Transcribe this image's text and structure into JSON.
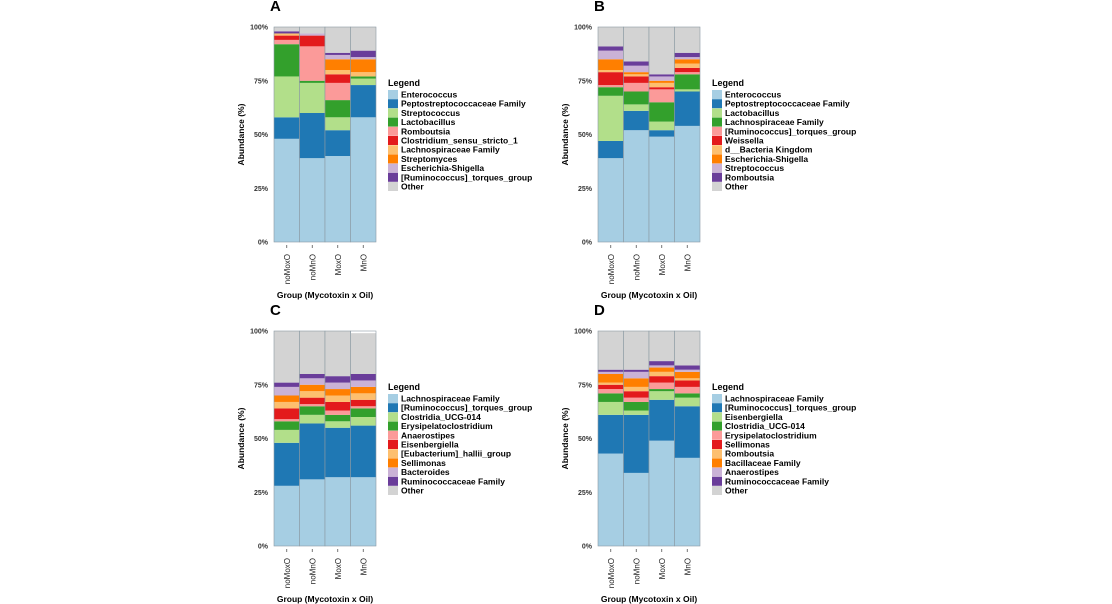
{
  "colors": [
    "#a6cee3",
    "#1f78b4",
    "#b2df8a",
    "#33a02c",
    "#fb9a99",
    "#e31a1c",
    "#fdbf6f",
    "#ff7f00",
    "#cab2d6",
    "#6a3d9a",
    "#d3d3d3"
  ],
  "chart_data": [
    {
      "panel": "A",
      "type": "bar",
      "stacked": true,
      "xlabel": "Group (Mycotoxin x Oil)",
      "ylabel": "Abundance (%)",
      "ylim": [
        0,
        100
      ],
      "yticks": [
        "0%",
        "25%",
        "50%",
        "75%",
        "100%"
      ],
      "categories": [
        "noMoxO",
        "noMnO",
        "MoxO",
        "MnO"
      ],
      "legend_title": "Legend",
      "series": [
        {
          "name": "Enterococcus",
          "values": [
            48,
            39,
            40,
            58
          ]
        },
        {
          "name": "Peptostreptococcaceae Family",
          "values": [
            10,
            21,
            12,
            15
          ]
        },
        {
          "name": "Streptococcus",
          "values": [
            19,
            14,
            6,
            3
          ]
        },
        {
          "name": "Lactobacillus",
          "values": [
            15,
            1,
            8,
            1
          ]
        },
        {
          "name": "Romboutsia",
          "values": [
            2,
            16,
            8,
            0
          ]
        },
        {
          "name": "Clostridium_sensu_stricto_1",
          "values": [
            2,
            5,
            4,
            0
          ]
        },
        {
          "name": "Lachnospiraceae Family",
          "values": [
            1,
            0,
            2,
            2
          ]
        },
        {
          "name": "Streptomyces",
          "values": [
            0,
            0,
            5,
            6
          ]
        },
        {
          "name": "Escherichia-Shigella",
          "values": [
            0,
            1,
            2,
            1
          ]
        },
        {
          "name": "[Ruminococcus]_torques_group",
          "values": [
            1,
            0,
            1,
            3
          ]
        },
        {
          "name": "Other",
          "values": [
            2,
            3,
            12,
            11
          ]
        }
      ]
    },
    {
      "panel": "B",
      "type": "bar",
      "stacked": true,
      "xlabel": "Group (Mycotoxin x Oil)",
      "ylabel": "Abundance (%)",
      "ylim": [
        0,
        100
      ],
      "yticks": [
        "0%",
        "25%",
        "50%",
        "75%",
        "100%"
      ],
      "categories": [
        "noMoxO",
        "noMnO",
        "MoxO",
        "MnO"
      ],
      "legend_title": "Legend",
      "series": [
        {
          "name": "Enterococcus",
          "values": [
            39,
            52,
            49,
            54
          ]
        },
        {
          "name": "Peptostreptococcaceae Family",
          "values": [
            8,
            9,
            3,
            16
          ]
        },
        {
          "name": "Lactobacillus",
          "values": [
            21,
            3,
            4,
            1
          ]
        },
        {
          "name": "Lachnospiraceae Family",
          "values": [
            4,
            6,
            9,
            7
          ]
        },
        {
          "name": "[Ruminococcus]_torques_group",
          "values": [
            1,
            4,
            6,
            1
          ]
        },
        {
          "name": "Weissella",
          "values": [
            6,
            3,
            1,
            2
          ]
        },
        {
          "name": "d__Bacteria Kingdom",
          "values": [
            1,
            1,
            2,
            2
          ]
        },
        {
          "name": "Escherichia-Shigella",
          "values": [
            5,
            1,
            1,
            2
          ]
        },
        {
          "name": "Streptococcus",
          "values": [
            4,
            3,
            2,
            1
          ]
        },
        {
          "name": "Romboutsia",
          "values": [
            2,
            2,
            1,
            2
          ]
        },
        {
          "name": "Other",
          "values": [
            9,
            16,
            22,
            12
          ]
        }
      ]
    },
    {
      "panel": "C",
      "type": "bar",
      "stacked": true,
      "xlabel": "Group (Mycotoxin x Oil)",
      "ylabel": "Abundance (%)",
      "ylim": [
        0,
        100
      ],
      "yticks": [
        "0%",
        "25%",
        "50%",
        "75%",
        "100%"
      ],
      "categories": [
        "noMoxO",
        "noMnO",
        "MoxO",
        "MnO"
      ],
      "legend_title": "Legend",
      "series": [
        {
          "name": "Lachnospiraceae Family",
          "values": [
            28,
            31,
            32,
            32
          ]
        },
        {
          "name": "[Ruminococcus]_torques_group",
          "values": [
            20,
            26,
            23,
            24
          ]
        },
        {
          "name": "Clostridia_UCG-014",
          "values": [
            6,
            4,
            3,
            4
          ]
        },
        {
          "name": "Erysipelatoclostridium",
          "values": [
            4,
            4,
            3,
            4
          ]
        },
        {
          "name": "Anaerostipes",
          "values": [
            1,
            1,
            2,
            1
          ]
        },
        {
          "name": "Eisenbergiella",
          "values": [
            5,
            3,
            4,
            3
          ]
        },
        {
          "name": "[Eubacterium]_hallii_group",
          "values": [
            3,
            3,
            3,
            3
          ]
        },
        {
          "name": "Sellimonas",
          "values": [
            3,
            3,
            3,
            3
          ]
        },
        {
          "name": "Bacteroides",
          "values": [
            4,
            3,
            3,
            3
          ]
        },
        {
          "name": "Ruminococcaceae Family",
          "values": [
            2,
            2,
            3,
            3
          ]
        },
        {
          "name": "Other",
          "values": [
            24,
            20,
            21,
            19
          ]
        }
      ]
    },
    {
      "panel": "D",
      "type": "bar",
      "stacked": true,
      "xlabel": "Group (Mycotoxin x Oil)",
      "ylabel": "Abundance (%)",
      "ylim": [
        0,
        100
      ],
      "yticks": [
        "0%",
        "25%",
        "50%",
        "75%",
        "100%"
      ],
      "categories": [
        "noMoxO",
        "noMnO",
        "MoxO",
        "MnO"
      ],
      "legend_title": "Legend",
      "series": [
        {
          "name": "Lachnospiraceae Family",
          "values": [
            43,
            34,
            49,
            41
          ]
        },
        {
          "name": "[Ruminococcus]_torques_group",
          "values": [
            18,
            27,
            19,
            24
          ]
        },
        {
          "name": "Eisenbergiella",
          "values": [
            6,
            2,
            4,
            4
          ]
        },
        {
          "name": "Clostridia_UCG-014",
          "values": [
            4,
            4,
            1,
            2
          ]
        },
        {
          "name": "Erysipelatoclostridium",
          "values": [
            2,
            2,
            3,
            3
          ]
        },
        {
          "name": "Sellimonas",
          "values": [
            2,
            3,
            3,
            3
          ]
        },
        {
          "name": "Romboutsia",
          "values": [
            1,
            2,
            2,
            1
          ]
        },
        {
          "name": "Bacillaceae Family",
          "values": [
            4,
            4,
            2,
            3
          ]
        },
        {
          "name": "Anaerostipes",
          "values": [
            1,
            3,
            1,
            1
          ]
        },
        {
          "name": "Ruminococcaceae Family",
          "values": [
            1,
            1,
            2,
            2
          ]
        },
        {
          "name": "Other",
          "values": [
            18,
            18,
            14,
            16
          ]
        }
      ]
    }
  ]
}
